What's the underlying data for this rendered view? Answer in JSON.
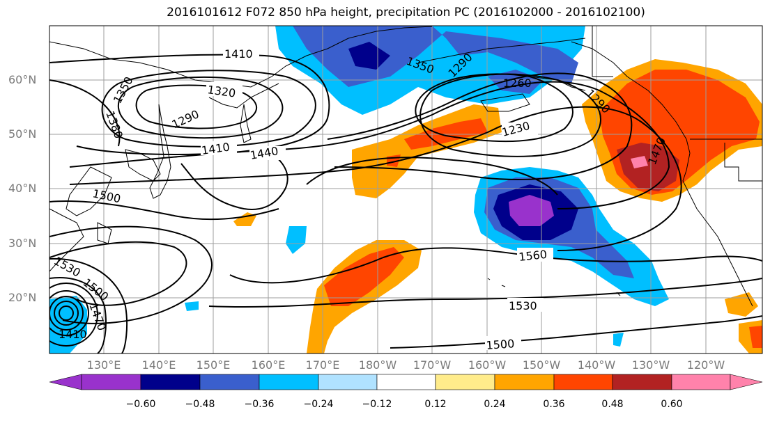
{
  "title": "2016101612 F072 850 hPa height, precipitation PC (2016102000 - 2016102100)",
  "lat_labels": [
    "60°N",
    "50°N",
    "40°N",
    "30°N",
    "20°N"
  ],
  "lon_labels": [
    "130°E",
    "140°E",
    "150°E",
    "160°E",
    "170°E",
    "180°W",
    "170°W",
    "160°W",
    "150°W",
    "140°W",
    "130°W",
    "120°W"
  ],
  "contour_labels": [
    "1410",
    "1350",
    "1380",
    "1350",
    "1320",
    "1290",
    "1290",
    "1260",
    "1230",
    "1290",
    "1410",
    "1440",
    "1470",
    "1500",
    "1560",
    "1530",
    "1530",
    "1500",
    "1470",
    "1500",
    "1410"
  ],
  "colorbar": {
    "ticks": [
      "−0.60",
      "−0.48",
      "−0.36",
      "−0.24",
      "−0.12",
      "0.12",
      "0.24",
      "0.36",
      "0.48",
      "0.60"
    ],
    "colors": [
      "#9932cc",
      "#00008b",
      "#3a5fcd",
      "#00bfff",
      "#b0e2ff",
      "#ffffff",
      "#ffec8b",
      "#ffa500",
      "#ff4500",
      "#b22222",
      "#ff82ab"
    ]
  }
}
